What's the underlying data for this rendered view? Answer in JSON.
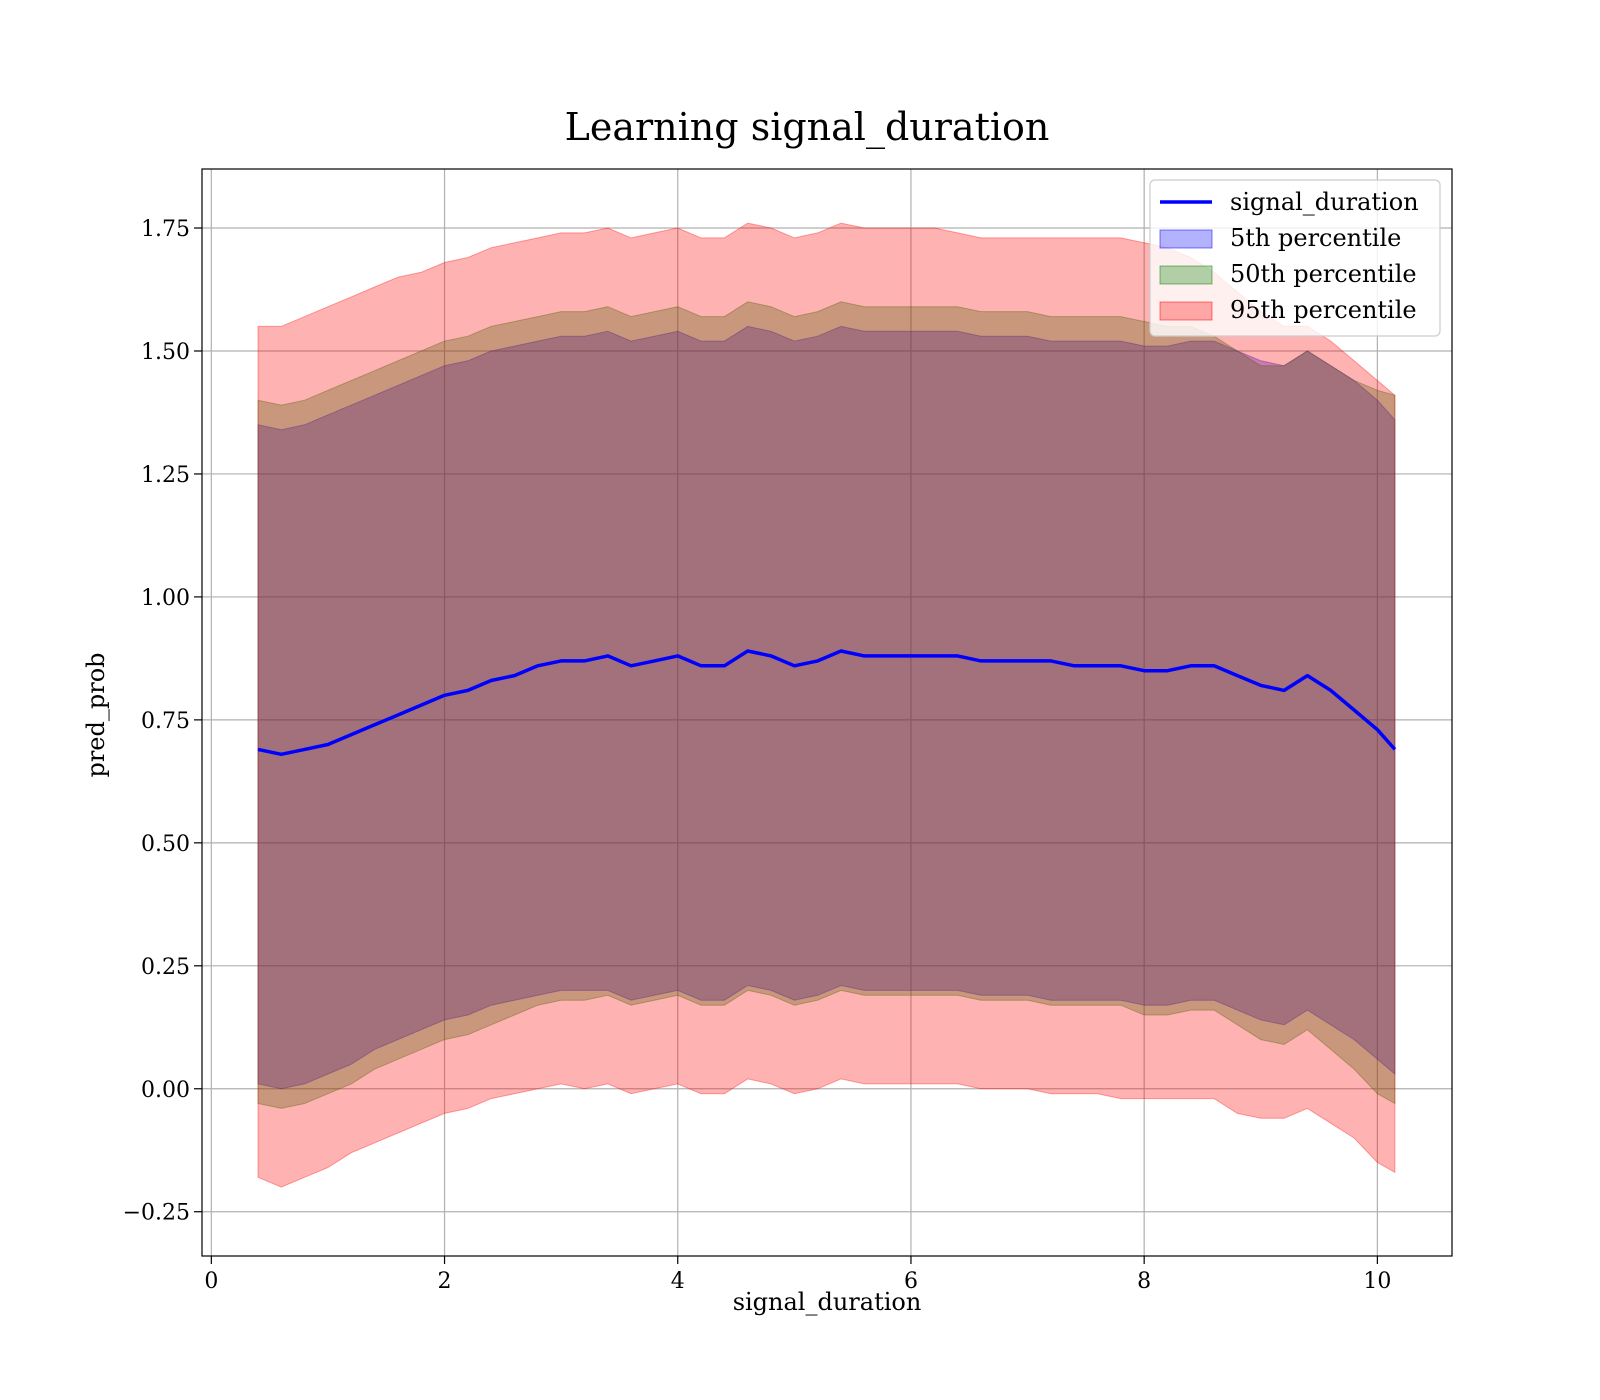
{
  "chart_data": {
    "type": "area",
    "title": "Learning signal_duration",
    "xlabel": "signal_duration",
    "ylabel": "pred_prob",
    "xlim": [
      -0.08,
      10.64
    ],
    "ylim": [
      -0.34,
      1.87
    ],
    "xticks": [
      0,
      2,
      4,
      6,
      8,
      10
    ],
    "xtick_labels": [
      "0",
      "2",
      "4",
      "6",
      "8",
      "10"
    ],
    "yticks": [
      -0.25,
      0.0,
      0.25,
      0.5,
      0.75,
      1.0,
      1.25,
      1.5,
      1.75
    ],
    "ytick_labels": [
      "−0.25",
      "0.00",
      "0.25",
      "0.50",
      "0.75",
      "1.00",
      "1.25",
      "1.50",
      "1.75"
    ],
    "grid": true,
    "legend_position": "top-right",
    "x": [
      0.4,
      0.6,
      0.8,
      1.0,
      1.2,
      1.4,
      1.6,
      1.8,
      2.0,
      2.2,
      2.4,
      2.6,
      2.8,
      3.0,
      3.2,
      3.4,
      3.6,
      3.8,
      4.0,
      4.2,
      4.4,
      4.6,
      4.8,
      5.0,
      5.2,
      5.4,
      5.6,
      5.8,
      6.0,
      6.2,
      6.4,
      6.6,
      6.8,
      7.0,
      7.2,
      7.4,
      7.6,
      7.8,
      8.0,
      8.2,
      8.4,
      8.6,
      8.8,
      9.0,
      9.2,
      9.4,
      9.6,
      9.8,
      10.0,
      10.15
    ],
    "series": [
      {
        "name": "signal_duration",
        "kind": "line",
        "color": "#0000ff",
        "values": [
          0.69,
          0.68,
          0.69,
          0.7,
          0.72,
          0.74,
          0.76,
          0.78,
          0.8,
          0.81,
          0.83,
          0.84,
          0.86,
          0.87,
          0.87,
          0.88,
          0.86,
          0.87,
          0.88,
          0.86,
          0.86,
          0.89,
          0.88,
          0.86,
          0.87,
          0.89,
          0.88,
          0.88,
          0.88,
          0.88,
          0.88,
          0.87,
          0.87,
          0.87,
          0.87,
          0.86,
          0.86,
          0.86,
          0.85,
          0.85,
          0.86,
          0.86,
          0.84,
          0.82,
          0.81,
          0.84,
          0.81,
          0.77,
          0.73,
          0.69
        ]
      },
      {
        "name": "5th percentile",
        "kind": "band",
        "color": "#0000ff",
        "opacity": 0.3,
        "lower": [
          0.01,
          0.0,
          0.01,
          0.03,
          0.05,
          0.08,
          0.1,
          0.12,
          0.14,
          0.15,
          0.17,
          0.18,
          0.19,
          0.2,
          0.2,
          0.2,
          0.18,
          0.19,
          0.2,
          0.18,
          0.18,
          0.21,
          0.2,
          0.18,
          0.19,
          0.21,
          0.2,
          0.2,
          0.2,
          0.2,
          0.2,
          0.19,
          0.19,
          0.19,
          0.18,
          0.18,
          0.18,
          0.18,
          0.17,
          0.17,
          0.18,
          0.18,
          0.16,
          0.14,
          0.13,
          0.16,
          0.13,
          0.1,
          0.06,
          0.03
        ],
        "upper": [
          1.35,
          1.34,
          1.35,
          1.37,
          1.39,
          1.41,
          1.43,
          1.45,
          1.47,
          1.48,
          1.5,
          1.51,
          1.52,
          1.53,
          1.53,
          1.54,
          1.52,
          1.53,
          1.54,
          1.52,
          1.52,
          1.55,
          1.54,
          1.52,
          1.53,
          1.55,
          1.54,
          1.54,
          1.54,
          1.54,
          1.54,
          1.53,
          1.53,
          1.53,
          1.52,
          1.52,
          1.52,
          1.52,
          1.51,
          1.51,
          1.52,
          1.52,
          1.5,
          1.48,
          1.47,
          1.5,
          1.47,
          1.44,
          1.4,
          1.36
        ]
      },
      {
        "name": "50th percentile",
        "kind": "band",
        "color": "#008000",
        "opacity": 0.3,
        "lower": [
          -0.03,
          -0.04,
          -0.03,
          -0.01,
          0.01,
          0.04,
          0.06,
          0.08,
          0.1,
          0.11,
          0.13,
          0.15,
          0.17,
          0.18,
          0.18,
          0.19,
          0.17,
          0.18,
          0.19,
          0.17,
          0.17,
          0.2,
          0.19,
          0.17,
          0.18,
          0.2,
          0.19,
          0.19,
          0.19,
          0.19,
          0.19,
          0.18,
          0.18,
          0.18,
          0.17,
          0.17,
          0.17,
          0.17,
          0.15,
          0.15,
          0.16,
          0.16,
          0.13,
          0.1,
          0.09,
          0.12,
          0.08,
          0.04,
          -0.01,
          -0.03
        ],
        "upper": [
          1.4,
          1.39,
          1.4,
          1.42,
          1.44,
          1.46,
          1.48,
          1.5,
          1.52,
          1.53,
          1.55,
          1.56,
          1.57,
          1.58,
          1.58,
          1.59,
          1.57,
          1.58,
          1.59,
          1.57,
          1.57,
          1.6,
          1.59,
          1.57,
          1.58,
          1.6,
          1.59,
          1.59,
          1.59,
          1.59,
          1.59,
          1.58,
          1.58,
          1.58,
          1.57,
          1.57,
          1.57,
          1.57,
          1.56,
          1.55,
          1.55,
          1.53,
          1.5,
          1.47,
          1.47,
          1.5,
          1.47,
          1.44,
          1.42,
          1.41
        ]
      },
      {
        "name": "95th percentile",
        "kind": "band",
        "color": "#ff0000",
        "opacity": 0.3,
        "lower": [
          -0.18,
          -0.2,
          -0.18,
          -0.16,
          -0.13,
          -0.11,
          -0.09,
          -0.07,
          -0.05,
          -0.04,
          -0.02,
          -0.01,
          0.0,
          0.01,
          0.0,
          0.01,
          -0.01,
          0.0,
          0.01,
          -0.01,
          -0.01,
          0.02,
          0.01,
          -0.01,
          0.0,
          0.02,
          0.01,
          0.01,
          0.01,
          0.01,
          0.01,
          0.0,
          0.0,
          0.0,
          -0.01,
          -0.01,
          -0.01,
          -0.02,
          -0.02,
          -0.02,
          -0.02,
          -0.02,
          -0.05,
          -0.06,
          -0.06,
          -0.04,
          -0.07,
          -0.1,
          -0.15,
          -0.17
        ],
        "upper": [
          1.55,
          1.55,
          1.57,
          1.59,
          1.61,
          1.63,
          1.65,
          1.66,
          1.68,
          1.69,
          1.71,
          1.72,
          1.73,
          1.74,
          1.74,
          1.75,
          1.73,
          1.74,
          1.75,
          1.73,
          1.73,
          1.76,
          1.75,
          1.73,
          1.74,
          1.76,
          1.75,
          1.75,
          1.75,
          1.75,
          1.74,
          1.73,
          1.73,
          1.73,
          1.73,
          1.73,
          1.73,
          1.73,
          1.72,
          1.71,
          1.69,
          1.66,
          1.62,
          1.58,
          1.55,
          1.55,
          1.52,
          1.48,
          1.44,
          1.41
        ]
      }
    ]
  }
}
